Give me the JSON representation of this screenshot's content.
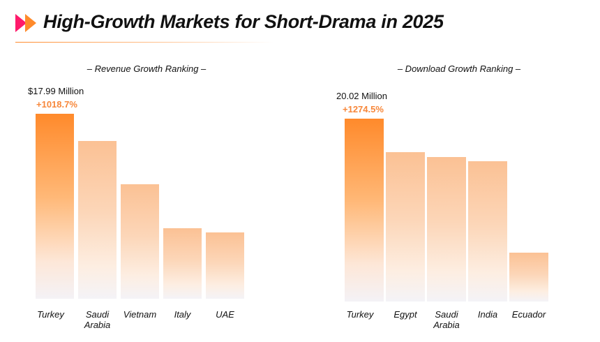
{
  "header": {
    "title": "High-Growth Markets for Short-Drama in 2025",
    "accent_colors": [
      "#ff1a6b",
      "#ff8a2b"
    ]
  },
  "chart_data": [
    {
      "type": "bar",
      "title": "– Revenue Growth Ranking –",
      "categories": [
        "Turkey",
        "Saudi Arabia",
        "Vietnam",
        "Italy",
        "UAE"
      ],
      "values": [
        1018.7,
        870,
        630,
        390,
        365
      ],
      "annotations": {
        "top_value": "$17.99 Million",
        "top_growth": "+1018.7%"
      },
      "ylim": [
        0,
        1018.7
      ],
      "grid": false,
      "colors": {
        "lead": "#ff8a2b",
        "rest": "#fbc194"
      }
    },
    {
      "type": "bar",
      "title": "– Download Growth Ranking –",
      "categories": [
        "Turkey",
        "Egypt",
        "Saudi Arabia",
        "India",
        "Ecuador"
      ],
      "values": [
        1274.5,
        1040,
        1005,
        980,
        340
      ],
      "annotations": {
        "top_value": "20.02 Million",
        "top_growth": "+1274.5%"
      },
      "ylim": [
        0,
        1274.5
      ],
      "grid": false,
      "colors": {
        "lead": "#ff8a2b",
        "rest": "#fbc194"
      }
    }
  ]
}
